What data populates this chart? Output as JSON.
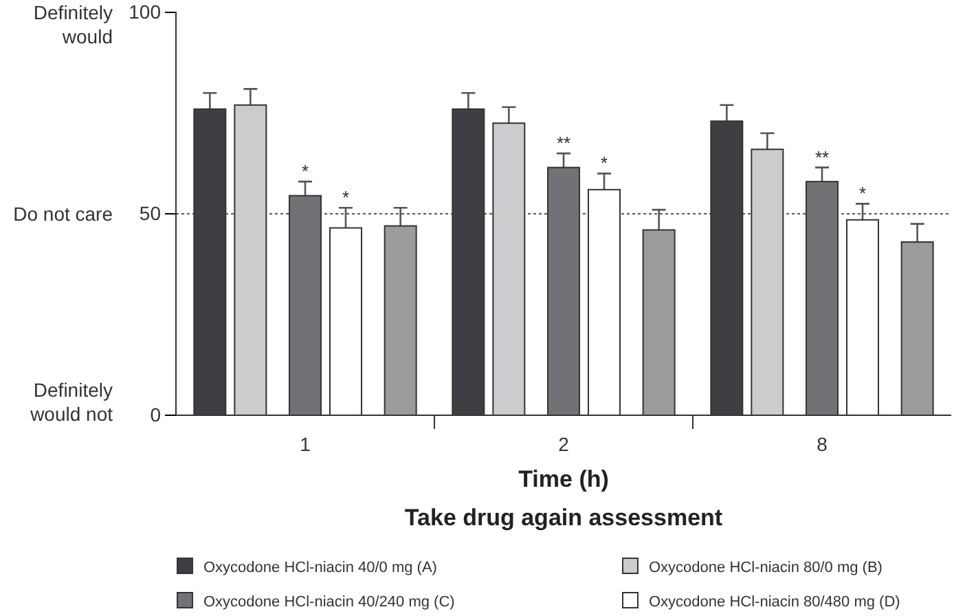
{
  "chart_data": {
    "type": "bar",
    "title": "Take drug again assessment",
    "xlabel": "Time (h)",
    "categories": [
      "1",
      "2",
      "8"
    ],
    "series": [
      {
        "name": "Oxycodone HCl-niacin 40/0 mg (A)",
        "color": "#3d3f42",
        "values": [
          76,
          76,
          73
        ],
        "errors": [
          4,
          4,
          4
        ]
      },
      {
        "name": "Oxycodone HCl-niacin 80/0 mg (B)",
        "color": "#cbcccd",
        "values": [
          77,
          72.5,
          66
        ],
        "errors": [
          4,
          4,
          4
        ]
      },
      {
        "name": "Oxycodone HCl-niacin 40/240 mg (C)",
        "color": "#707275",
        "values": [
          54.5,
          61.5,
          58
        ],
        "errors": [
          3.5,
          3.5,
          3.5
        ]
      },
      {
        "name": "Oxycodone HCl-niacin 80/480 mg (D)",
        "color": "#ffffff",
        "values": [
          46.5,
          56,
          48.5
        ],
        "errors": [
          5,
          4,
          4
        ]
      },
      {
        "color": "#9a9b9d",
        "values": [
          47,
          46,
          43
        ],
        "errors": [
          4.5,
          5,
          4.5
        ]
      }
    ],
    "ylim": [
      0,
      100
    ],
    "yticks": [
      0,
      50,
      100
    ],
    "ref_lines": [
      {
        "axis": "y",
        "value": 50,
        "line_style": "dotted"
      }
    ],
    "annotations": [
      "Definitely would",
      "Do not care",
      "Definitely would not",
      {
        "text": "*",
        "x": "1",
        "y": 58
      },
      {
        "text": "*",
        "x": "1",
        "y": 51.5
      },
      {
        "text": "**",
        "x": "2",
        "y": 65
      },
      {
        "text": "*",
        "x": "2",
        "y": 60
      },
      {
        "text": "**",
        "x": "8",
        "y": 61.5
      },
      {
        "text": "*",
        "x": "8",
        "y": 48.5
      }
    ],
    "legend": "bottom",
    "grid": false
  }
}
